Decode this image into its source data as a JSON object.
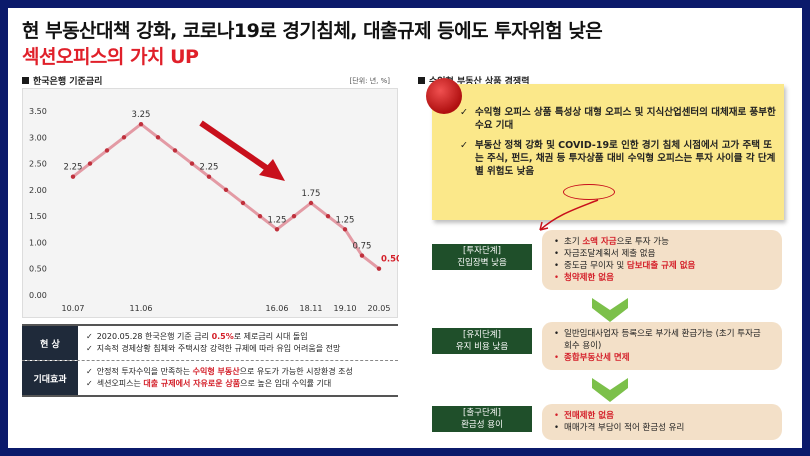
{
  "title_line1": "현 부동산대책 강화, 코로나19로 경기침체, 대출규제 등에도 투자위험 낮은",
  "title_line2": "섹션오피스의 가치 UP",
  "left_section_title": "한국은행 기준금리",
  "unit_label": "[단위: 년, %]",
  "right_section_title": "수익형 부동산 상품 경쟁력",
  "chart_data": {
    "type": "line",
    "title": "한국은행 기준금리",
    "ylabel": "",
    "xlabel": "",
    "ylim": [
      0,
      3.5
    ],
    "yticks": [
      "3.50",
      "3.00",
      "2.50",
      "2.00",
      "1.50",
      "1.00",
      "0.50",
      "0.00"
    ],
    "xtick_labels": [
      "10.07",
      "11.06",
      "16.06",
      "18.11",
      "19.10",
      "20.05"
    ],
    "values": [
      2.25,
      2.5,
      2.75,
      3.0,
      3.25,
      3.0,
      2.75,
      2.5,
      2.25,
      2.0,
      1.75,
      1.5,
      1.25,
      1.5,
      1.75,
      1.5,
      1.25,
      0.75,
      0.5
    ],
    "data_labels": [
      {
        "index": 0,
        "text": "2.25"
      },
      {
        "index": 4,
        "text": "3.25"
      },
      {
        "index": 8,
        "text": "2.25"
      },
      {
        "index": 12,
        "text": "1.25"
      },
      {
        "index": 14,
        "text": "1.75"
      },
      {
        "index": 16,
        "text": "1.25"
      },
      {
        "index": 17,
        "text": "0.75"
      },
      {
        "index": 18,
        "text": "0.50"
      }
    ],
    "line_color": "#e39aa4",
    "marker_color": "#c0303c",
    "highlight_color": "#d4202a",
    "trend_arrow_color": "#c8101c"
  },
  "table": {
    "rows": [
      {
        "label": "현 상",
        "items": [
          {
            "parts": [
              {
                "t": "2020.05.28 한국은행 기준 금리 ",
                "red": false
              },
              {
                "t": "0.5%",
                "red": true
              },
              {
                "t": "로 제로금리 시대 돌입",
                "red": false
              }
            ]
          },
          {
            "parts": [
              {
                "t": "지속적 경제상황 침체와 주택시장 강력한 규제에 따라 유입 어려움을 전망",
                "red": false
              }
            ]
          }
        ]
      },
      {
        "label": "기대효과",
        "items": [
          {
            "parts": [
              {
                "t": "안정적 투자수익을 만족하는 ",
                "red": false
              },
              {
                "t": "수익형 부동산",
                "red": true
              },
              {
                "t": "으로 유도가 가능한 시장환경 조성",
                "red": false
              }
            ]
          },
          {
            "parts": [
              {
                "t": "섹션오피스는 ",
                "red": false
              },
              {
                "t": "대출 규제에서 자유로운 상품",
                "red": true
              },
              {
                "t": "으로 높은 임대 수익률 기대",
                "red": false
              }
            ]
          }
        ]
      }
    ]
  },
  "yellow_items": [
    "수익형 오피스 상품 특성상 대형 오피스 및 지식산업센터의 대체재로 풍부한 수요 기대",
    "부동산 정책 강화 및 COVID-19로 인한 경기 침체 시점에서 고가 주택 또는 주식, 펀드, 채권 등 투자상품 대비 수익형 오피스는 투자 사이클 각 단계별 위험도 낮음"
  ],
  "stages": [
    {
      "title": "[투자단계]",
      "subtitle": "진입장벽 낮음",
      "bullets": [
        {
          "text": "초기 ",
          "red_text": "소액 자금",
          "rest": "으로 투자 가능",
          "red": false
        },
        {
          "text": "자금조달계획서 제출 없음",
          "red_text": "",
          "rest": "",
          "red": false
        },
        {
          "text": "중도금 무이자 및 ",
          "red_text": "담보대출 규제 없음",
          "rest": "",
          "red": false
        },
        {
          "text": "",
          "red_text": "청약제한 없음",
          "rest": "",
          "red": true
        }
      ]
    },
    {
      "title": "[유지단계]",
      "subtitle": "유지 비용 낮음",
      "bullets": [
        {
          "text": "일반임대사업자 등록으로 부가세 환급가능 (초기 투자금 회수 용이)",
          "red_text": "",
          "rest": "",
          "red": false
        },
        {
          "text": "",
          "red_text": "종합부동산세 면제",
          "rest": "",
          "red": true
        }
      ]
    },
    {
      "title": "[출구단계]",
      "subtitle": "환금성 용이",
      "bullets": [
        {
          "text": "",
          "red_text": "전매제한 없음",
          "rest": "",
          "red": true
        },
        {
          "text": "매매가격 부담이 적어 환금성 유리",
          "red_text": "",
          "rest": "",
          "red": false
        }
      ]
    }
  ],
  "colors": {
    "frame": "#0b1a6b",
    "title_red": "#e0202a",
    "stage_green": "#1f4f2a",
    "stage_card": "#f3e0c8",
    "note_yellow": "#fbe88a",
    "chevron_green": "#7cc04a"
  },
  "icons": {
    "pin": "red-pushpin-icon",
    "check": "checkmark-icon",
    "chevron": "chevron-down-icon",
    "square": "square-bullet-icon"
  }
}
